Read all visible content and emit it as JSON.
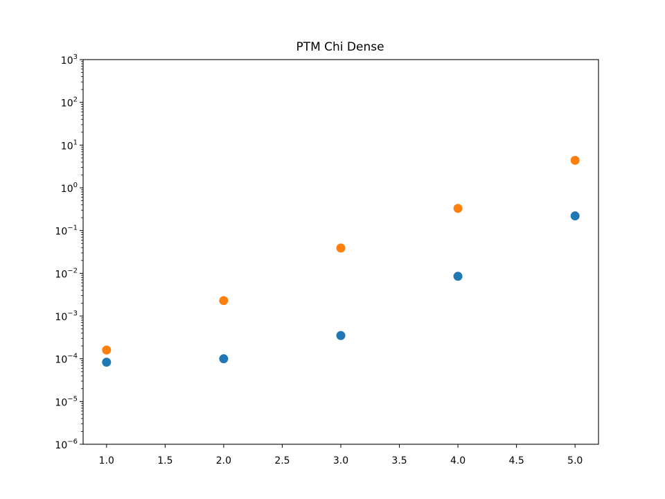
{
  "chart_data": {
    "type": "scatter",
    "title": "PTM Chi Dense",
    "xlabel": "",
    "ylabel": "",
    "xlim": [
      0.8,
      5.2
    ],
    "ylim": [
      1e-06,
      1000
    ],
    "yscale": "log",
    "grid": false,
    "x_ticks": [
      "1.0",
      "1.5",
      "2.0",
      "2.5",
      "3.0",
      "3.5",
      "4.0",
      "4.5",
      "5.0"
    ],
    "y_ticks": [
      {
        "base": "10",
        "exp": "3"
      },
      {
        "base": "10",
        "exp": "2"
      },
      {
        "base": "10",
        "exp": "1"
      },
      {
        "base": "10",
        "exp": "0"
      },
      {
        "base": "10",
        "exp": "−1"
      },
      {
        "base": "10",
        "exp": "−2"
      },
      {
        "base": "10",
        "exp": "−3"
      },
      {
        "base": "10",
        "exp": "−4"
      },
      {
        "base": "10",
        "exp": "−5"
      },
      {
        "base": "10",
        "exp": "−6"
      }
    ],
    "series": [
      {
        "color": "#1f77b4",
        "x": [
          1,
          2,
          3,
          4,
          5
        ],
        "y": [
          8.3e-05,
          0.0001,
          0.00035,
          0.0085,
          0.22
        ]
      },
      {
        "color": "#ff7f0e",
        "x": [
          1,
          2,
          3,
          4,
          5
        ],
        "y": [
          0.00016,
          0.0023,
          0.039,
          0.33,
          4.4
        ]
      }
    ]
  }
}
